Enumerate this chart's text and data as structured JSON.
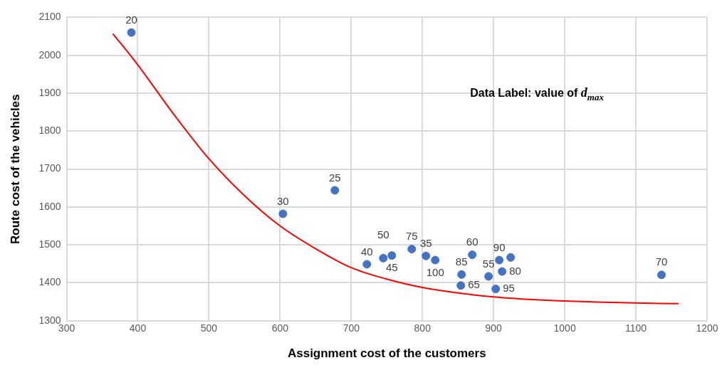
{
  "chart_data": {
    "type": "scatter",
    "xlabel": "Assignment cost of the customers",
    "ylabel": "Route cost of the vehicles",
    "xlim": [
      300,
      1200
    ],
    "xticks": [
      300,
      400,
      500,
      600,
      700,
      800,
      900,
      1000,
      1100,
      1200
    ],
    "ylim": [
      1300,
      2100
    ],
    "yticks": [
      1300,
      1400,
      1500,
      1600,
      1700,
      1800,
      1900,
      2000,
      2100
    ],
    "grid": true,
    "legend": false,
    "marker": "circle",
    "annotations": [
      "Data Label: value of d$_{max}$",
      {
        "text": "20",
        "x": 391,
        "y": 2060
      },
      {
        "text": "25",
        "x": 677,
        "y": 1644
      },
      {
        "text": "30",
        "x": 604,
        "y": 1582
      },
      {
        "text": "40",
        "x": 722,
        "y": 1449
      },
      {
        "text": "50",
        "x": 745,
        "y": 1465
      },
      {
        "text": "45",
        "x": 757,
        "y": 1472
      },
      {
        "text": "75",
        "x": 785,
        "y": 1489
      },
      {
        "text": "35",
        "x": 805,
        "y": 1471
      },
      {
        "text": "100",
        "x": 818,
        "y": 1460
      },
      {
        "text": "60",
        "x": 870,
        "y": 1474
      },
      {
        "text": "85",
        "x": 855,
        "y": 1422
      },
      {
        "text": "65",
        "x": 854,
        "y": 1393
      },
      {
        "text": "55",
        "x": 893,
        "y": 1417
      },
      {
        "text": "90",
        "x": 908,
        "y": 1460
      },
      {
        "text": "80",
        "x": 912,
        "y": 1430
      },
      {
        "text": "95",
        "x": 903,
        "y": 1384
      },
      {
        "text": "70",
        "x": 1136,
        "y": 1421
      }
    ],
    "series": [
      {
        "color": "#4472c4",
        "x": [
          391,
          677,
          604,
          722,
          745,
          757,
          785,
          805,
          818,
          870,
          855,
          854,
          893,
          908,
          924,
          912,
          903,
          1136
        ],
        "values": [
          2060,
          1644,
          1582,
          1449,
          1465,
          1472,
          1489,
          1471,
          1460,
          1474,
          1422,
          1393,
          1417,
          1460,
          1467,
          1430,
          1384,
          1421
        ]
      },
      {
        "type": "line",
        "color": "#ff0000",
        "marker": "none",
        "x": [
          365,
          400,
          450,
          500,
          550,
          600,
          650,
          700,
          750,
          800,
          900,
          1000,
          1100,
          1160
        ],
        "values": [
          2057,
          1975,
          1846,
          1727,
          1630,
          1550,
          1490,
          1440,
          1410,
          1388,
          1363,
          1352,
          1347,
          1345
        ]
      }
    ]
  }
}
